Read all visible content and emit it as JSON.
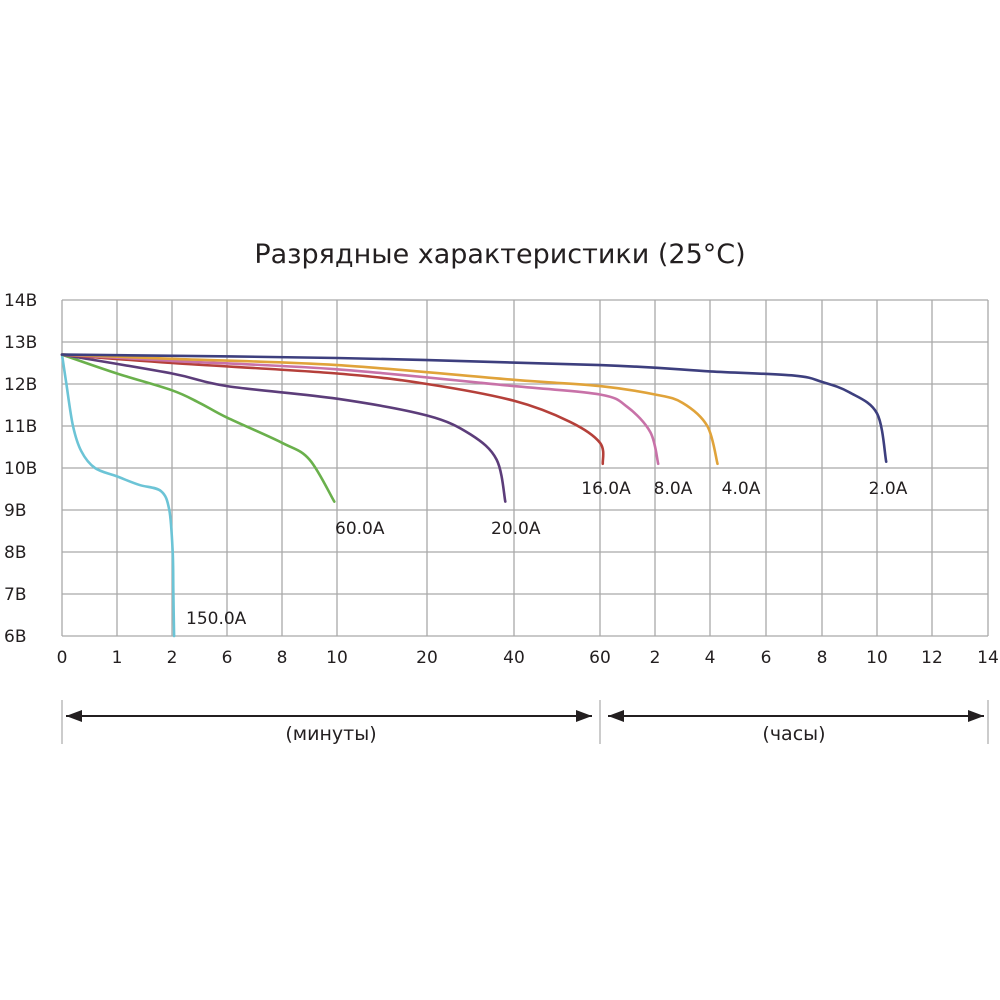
{
  "chart_data": {
    "type": "line",
    "title": "Разрядные характеристики (25°C)",
    "y_ticks": [
      "14В",
      "13В",
      "12В",
      "11В",
      "10В",
      "9В",
      "8В",
      "7В",
      "6В"
    ],
    "ylim": [
      6,
      14
    ],
    "x_ticks": [
      "0",
      "1",
      "2",
      "6",
      "8",
      "10",
      "20",
      "40",
      "60",
      "2",
      "4",
      "6",
      "8",
      "10",
      "12",
      "14"
    ],
    "x_ticks_minutes": [
      "0",
      "1",
      "2",
      "6",
      "8",
      "10",
      "20",
      "40",
      "60"
    ],
    "x_ticks_hours": [
      "2",
      "4",
      "6",
      "8",
      "10",
      "12",
      "14"
    ],
    "xscale": "non-linear (minutes then hours)",
    "grid": true,
    "legend": "inline labels at curve ends",
    "x_ranges": [
      {
        "label": "(минуты)",
        "from_min": 0,
        "to_min": 60
      },
      {
        "label": "(часы)",
        "from_min": 60,
        "to_min": 840
      }
    ],
    "series": [
      {
        "name": "150.0A",
        "color": "#6cc4d6",
        "points": [
          [
            0,
            12.7
          ],
          [
            0.08,
            12.0
          ],
          [
            0.2,
            11.0
          ],
          [
            0.35,
            10.4
          ],
          [
            0.6,
            10.0
          ],
          [
            1.0,
            9.8
          ],
          [
            1.4,
            9.6
          ],
          [
            1.8,
            9.45
          ],
          [
            1.95,
            9.0
          ],
          [
            2.05,
            8.0
          ],
          [
            2.1,
            7.0
          ],
          [
            2.15,
            6.0
          ]
        ]
      },
      {
        "name": "60.0A",
        "color": "#6ab04c",
        "points": [
          [
            0,
            12.7
          ],
          [
            1,
            12.25
          ],
          [
            2,
            11.85
          ],
          [
            4,
            11.55
          ],
          [
            6,
            11.2
          ],
          [
            8,
            10.6
          ],
          [
            9,
            10.2
          ],
          [
            9.9,
            9.2
          ]
        ]
      },
      {
        "name": "20.0A",
        "color": "#5c3d7a",
        "points": [
          [
            0,
            12.7
          ],
          [
            2,
            12.25
          ],
          [
            6,
            11.95
          ],
          [
            10,
            11.65
          ],
          [
            20,
            11.25
          ],
          [
            30,
            10.8
          ],
          [
            36,
            10.2
          ],
          [
            38,
            9.2
          ]
        ]
      },
      {
        "name": "16.0A",
        "color": "#b5403a",
        "points": [
          [
            0,
            12.7
          ],
          [
            2,
            12.5
          ],
          [
            10,
            12.25
          ],
          [
            20,
            12.0
          ],
          [
            40,
            11.6
          ],
          [
            53,
            11.1
          ],
          [
            60,
            10.6
          ],
          [
            63,
            10.1
          ]
        ]
      },
      {
        "name": "8.0A",
        "color": "#c872a8",
        "points": [
          [
            0,
            12.7
          ],
          [
            2,
            12.55
          ],
          [
            10,
            12.35
          ],
          [
            40,
            11.95
          ],
          [
            60,
            11.75
          ],
          [
            90,
            11.45
          ],
          [
            115,
            10.85
          ],
          [
            127,
            10.1
          ]
        ]
      },
      {
        "name": "4.0A",
        "color": "#e0a33a",
        "points": [
          [
            0,
            12.7
          ],
          [
            2,
            12.6
          ],
          [
            10,
            12.45
          ],
          [
            40,
            12.1
          ],
          [
            60,
            11.95
          ],
          [
            120,
            11.75
          ],
          [
            180,
            11.55
          ],
          [
            234,
            11.0
          ],
          [
            256,
            10.1
          ]
        ]
      },
      {
        "name": "2.0A",
        "color": "#3d3f7e",
        "points": [
          [
            0,
            12.7
          ],
          [
            10,
            12.62
          ],
          [
            60,
            12.45
          ],
          [
            240,
            12.3
          ],
          [
            420,
            12.2
          ],
          [
            480,
            12.05
          ],
          [
            540,
            11.8
          ],
          [
            600,
            11.3
          ],
          [
            620,
            10.15
          ]
        ]
      }
    ]
  }
}
